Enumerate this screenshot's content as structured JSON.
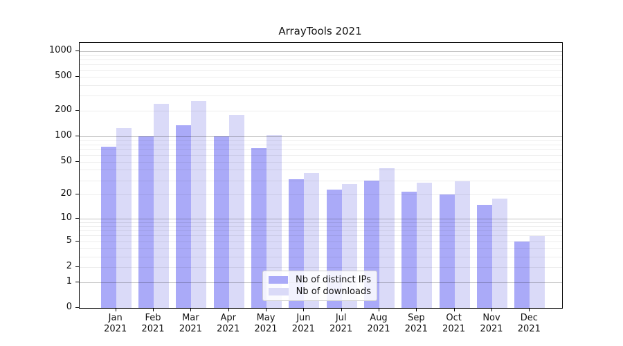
{
  "title": "ArrayTools 2021",
  "chart_data": {
    "type": "bar",
    "title": "ArrayTools 2021",
    "categories": [
      "Jan 2021",
      "Feb 2021",
      "Mar 2021",
      "Apr 2021",
      "May 2021",
      "Jun 2021",
      "Jul 2021",
      "Aug 2021",
      "Sep 2021",
      "Oct 2021",
      "Nov 2021",
      "Dec 2021"
    ],
    "x_tick_lines": [
      {
        "month": "Jan",
        "year": "2021"
      },
      {
        "month": "Feb",
        "year": "2021"
      },
      {
        "month": "Mar",
        "year": "2021"
      },
      {
        "month": "Apr",
        "year": "2021"
      },
      {
        "month": "May",
        "year": "2021"
      },
      {
        "month": "Jun",
        "year": "2021"
      },
      {
        "month": "Jul",
        "year": "2021"
      },
      {
        "month": "Aug",
        "year": "2021"
      },
      {
        "month": "Sep",
        "year": "2021"
      },
      {
        "month": "Oct",
        "year": "2021"
      },
      {
        "month": "Nov",
        "year": "2021"
      },
      {
        "month": "Dec",
        "year": "2021"
      }
    ],
    "series": [
      {
        "name": "Nb of distinct IPs",
        "color": "#aaaaf8",
        "values": [
          75,
          101,
          135,
          101,
          73,
          31,
          23,
          30,
          22,
          20,
          15,
          5
        ]
      },
      {
        "name": "Nb of downloads",
        "color": "#dadaf8",
        "values": [
          125,
          240,
          260,
          180,
          105,
          37,
          27,
          42,
          28,
          29,
          18,
          6
        ]
      }
    ],
    "yscale": "log-like (position proportional to log10(value+1))",
    "yticks": [
      1000,
      500,
      200,
      100,
      50,
      20,
      10,
      5,
      2,
      1,
      0
    ],
    "ylim": [
      0,
      1200
    ],
    "xlabel": "",
    "ylabel": "",
    "grid": true,
    "gridlines_over_bars": true,
    "legend_position": "lower center",
    "background": "#ffffff",
    "axis_color": "#000000"
  }
}
